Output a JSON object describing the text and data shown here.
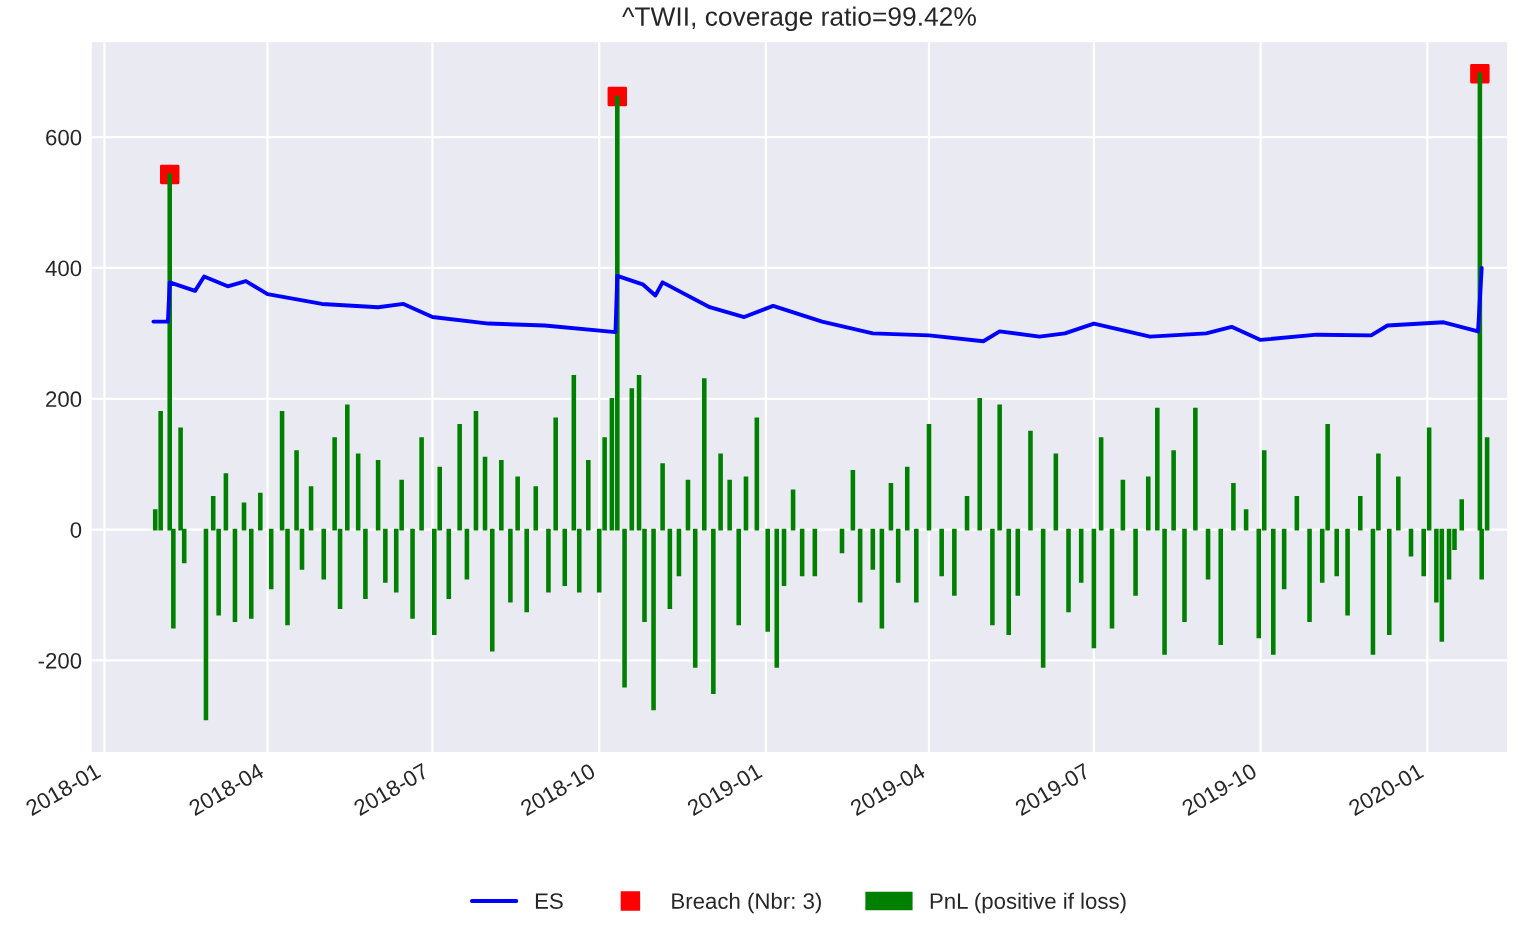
{
  "chart_data": {
    "type": "bar",
    "title": "^TWII, coverage ratio=99.42%",
    "xlim": [
      "2017-12-25",
      "2020-02-14"
    ],
    "ylim": [
      -340,
      745
    ],
    "xticks": [
      "2018-01",
      "2018-04",
      "2018-07",
      "2018-10",
      "2019-01",
      "2019-04",
      "2019-07",
      "2019-10",
      "2020-01"
    ],
    "yticks": [
      -200,
      0,
      200,
      400,
      600
    ],
    "grid": true,
    "legend": "bottom",
    "series": [
      {
        "name": "ES",
        "type": "line",
        "color": "#0000ff",
        "marker": "none",
        "line_style": "solid",
        "x": [
          "2018-01-28",
          "2018-02-05",
          "2018-02-06",
          "2018-02-20",
          "2018-02-25",
          "2018-03-10",
          "2018-03-20",
          "2018-04-01",
          "2018-05-01",
          "2018-06-01",
          "2018-06-15",
          "2018-07-01",
          "2018-08-01",
          "2018-09-01",
          "2018-10-10",
          "2018-10-11",
          "2018-10-25",
          "2018-11-01",
          "2018-11-05",
          "2018-12-01",
          "2018-12-20",
          "2019-01-05",
          "2019-02-01",
          "2019-03-01",
          "2019-04-01",
          "2019-05-01",
          "2019-05-10",
          "2019-06-01",
          "2019-06-15",
          "2019-07-01",
          "2019-08-01",
          "2019-09-01",
          "2019-09-15",
          "2019-10-01",
          "2019-11-01",
          "2019-12-01",
          "2019-12-10",
          "2020-01-10",
          "2020-01-29",
          "2020-01-31"
        ],
        "values": [
          318,
          318,
          378,
          365,
          387,
          372,
          380,
          360,
          345,
          340,
          345,
          325,
          315,
          312,
          302,
          388,
          375,
          358,
          378,
          340,
          325,
          342,
          318,
          300,
          297,
          288,
          303,
          295,
          300,
          315,
          295,
          300,
          310,
          290,
          298,
          297,
          312,
          317,
          303,
          400
        ]
      },
      {
        "name": "Breach (Nbr: 3)",
        "type": "scatter",
        "color": "#ff0000",
        "marker": "square",
        "x": [
          "2018-02-06",
          "2018-10-11",
          "2020-01-30"
        ],
        "values": [
          543,
          662,
          697
        ]
      },
      {
        "name": "PnL (positive if loss)",
        "color": "#008000",
        "x": [
          "2018-01-29",
          "2018-02-01",
          "2018-02-06",
          "2018-02-08",
          "2018-02-12",
          "2018-02-14",
          "2018-02-26",
          "2018-03-02",
          "2018-03-05",
          "2018-03-09",
          "2018-03-14",
          "2018-03-19",
          "2018-03-23",
          "2018-03-28",
          "2018-04-03",
          "2018-04-09",
          "2018-04-12",
          "2018-04-17",
          "2018-04-20",
          "2018-04-25",
          "2018-05-02",
          "2018-05-08",
          "2018-05-11",
          "2018-05-15",
          "2018-05-21",
          "2018-05-25",
          "2018-06-01",
          "2018-06-05",
          "2018-06-11",
          "2018-06-14",
          "2018-06-20",
          "2018-06-25",
          "2018-07-02",
          "2018-07-05",
          "2018-07-10",
          "2018-07-16",
          "2018-07-20",
          "2018-07-25",
          "2018-07-30",
          "2018-08-03",
          "2018-08-08",
          "2018-08-13",
          "2018-08-17",
          "2018-08-22",
          "2018-08-27",
          "2018-09-03",
          "2018-09-07",
          "2018-09-12",
          "2018-09-17",
          "2018-09-20",
          "2018-09-25",
          "2018-10-01",
          "2018-10-04",
          "2018-10-08",
          "2018-10-11",
          "2018-10-15",
          "2018-10-19",
          "2018-10-23",
          "2018-10-26",
          "2018-10-31",
          "2018-11-05",
          "2018-11-09",
          "2018-11-14",
          "2018-11-19",
          "2018-11-23",
          "2018-11-28",
          "2018-12-03",
          "2018-12-07",
          "2018-12-12",
          "2018-12-17",
          "2018-12-21",
          "2018-12-27",
          "2019-01-02",
          "2019-01-07",
          "2019-01-11",
          "2019-01-16",
          "2019-01-21",
          "2019-01-28",
          "2019-02-12",
          "2019-02-18",
          "2019-02-22",
          "2019-03-01",
          "2019-03-06",
          "2019-03-11",
          "2019-03-15",
          "2019-03-20",
          "2019-03-25",
          "2019-04-01",
          "2019-04-08",
          "2019-04-15",
          "2019-04-22",
          "2019-04-29",
          "2019-05-06",
          "2019-05-10",
          "2019-05-15",
          "2019-05-20",
          "2019-05-27",
          "2019-06-03",
          "2019-06-10",
          "2019-06-17",
          "2019-06-24",
          "2019-07-01",
          "2019-07-05",
          "2019-07-11",
          "2019-07-17",
          "2019-07-24",
          "2019-07-31",
          "2019-08-05",
          "2019-08-09",
          "2019-08-14",
          "2019-08-20",
          "2019-08-26",
          "2019-09-02",
          "2019-09-09",
          "2019-09-16",
          "2019-09-23",
          "2019-09-30",
          "2019-10-03",
          "2019-10-08",
          "2019-10-14",
          "2019-10-21",
          "2019-10-28",
          "2019-11-04",
          "2019-11-07",
          "2019-11-12",
          "2019-11-18",
          "2019-11-25",
          "2019-12-02",
          "2019-12-05",
          "2019-12-11",
          "2019-12-16",
          "2019-12-23",
          "2019-12-30",
          "2020-01-02",
          "2020-01-06",
          "2020-01-09",
          "2020-01-13",
          "2020-01-16",
          "2020-01-20",
          "2020-01-30",
          "2020-01-31",
          "2020-02-03"
        ],
        "values": [
          30,
          180,
          543,
          -150,
          155,
          -50,
          -290,
          50,
          -130,
          85,
          -140,
          40,
          -135,
          55,
          -90,
          180,
          -145,
          120,
          -60,
          65,
          -75,
          140,
          -120,
          190,
          115,
          -105,
          105,
          -80,
          -95,
          75,
          -135,
          140,
          -160,
          95,
          -105,
          160,
          -75,
          180,
          110,
          -185,
          105,
          -110,
          80,
          -125,
          65,
          -95,
          170,
          -85,
          235,
          -95,
          105,
          -95,
          140,
          200,
          662,
          -240,
          215,
          235,
          -140,
          -275,
          100,
          -120,
          -70,
          75,
          -210,
          230,
          -250,
          115,
          75,
          -145,
          80,
          170,
          -155,
          -210,
          -85,
          60,
          -70,
          -70,
          -35,
          90,
          -110,
          -60,
          -150,
          70,
          -80,
          95,
          -110,
          160,
          -70,
          -100,
          50,
          200,
          -145,
          190,
          -160,
          -100,
          150,
          -210,
          115,
          -125,
          -80,
          -180,
          140,
          -150,
          75,
          -100,
          80,
          185,
          -190,
          120,
          -140,
          185,
          -75,
          -175,
          70,
          30,
          -165,
          120,
          -190,
          -90,
          50,
          -140,
          -80,
          160,
          -70,
          -130,
          50,
          -190,
          115,
          -160,
          80,
          -40,
          -70,
          155,
          -110,
          -170,
          -75,
          -30,
          45,
          697,
          -75,
          140
        ]
      }
    ]
  }
}
